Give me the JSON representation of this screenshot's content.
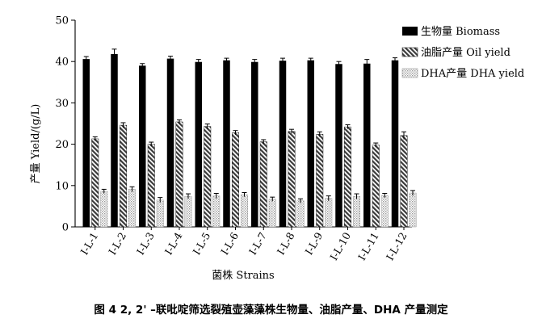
{
  "chart_data": {
    "type": "bar",
    "ylabel": "产量 Yield/(g/L)",
    "xlabel": "菌株  Strains",
    "ylim": [
      0,
      50
    ],
    "yticks": [
      0,
      10,
      20,
      30,
      40,
      50
    ],
    "legend_position": "top-right",
    "grid": false,
    "categories": [
      "I-L-1",
      "I-L-2",
      "I-L-3",
      "I-L-4",
      "I-L-5",
      "I-L-6",
      "I-L-7",
      "I-L-8",
      "I-L-9",
      "I-L-10",
      "I-L-11",
      "I-L-12"
    ],
    "series": [
      {
        "name": "生物量  Biomass",
        "pattern": "solid",
        "values": [
          40.6,
          41.8,
          39.0,
          40.7,
          39.9,
          40.3,
          39.9,
          40.2,
          40.3,
          39.4,
          39.5,
          40.3
        ],
        "errors": [
          0.6,
          1.2,
          0.5,
          0.6,
          0.6,
          0.5,
          0.6,
          0.6,
          0.5,
          0.6,
          1.0,
          0.6
        ]
      },
      {
        "name": "油脂产量  Oil yield",
        "pattern": "hatched",
        "values": [
          21.3,
          24.6,
          20.0,
          25.4,
          24.3,
          22.8,
          20.6,
          23.1,
          22.4,
          24.2,
          19.8,
          22.1
        ],
        "errors": [
          0.5,
          0.6,
          0.5,
          0.5,
          0.6,
          0.5,
          0.5,
          0.5,
          0.6,
          0.5,
          0.5,
          0.9
        ]
      },
      {
        "name": "DHA产量  DHA yield",
        "pattern": "dotted",
        "values": [
          8.6,
          9.1,
          6.5,
          7.4,
          7.5,
          7.8,
          6.7,
          6.3,
          6.9,
          7.4,
          7.6,
          8.2
        ],
        "errors": [
          0.5,
          0.6,
          0.6,
          0.6,
          0.6,
          0.5,
          0.5,
          0.5,
          0.6,
          0.6,
          0.5,
          0.6
        ]
      }
    ]
  },
  "caption": "图 4    2, 2' –联吡啶筛选裂殖壶藻藻株生物量、油脂产量、DHA 产量测定"
}
